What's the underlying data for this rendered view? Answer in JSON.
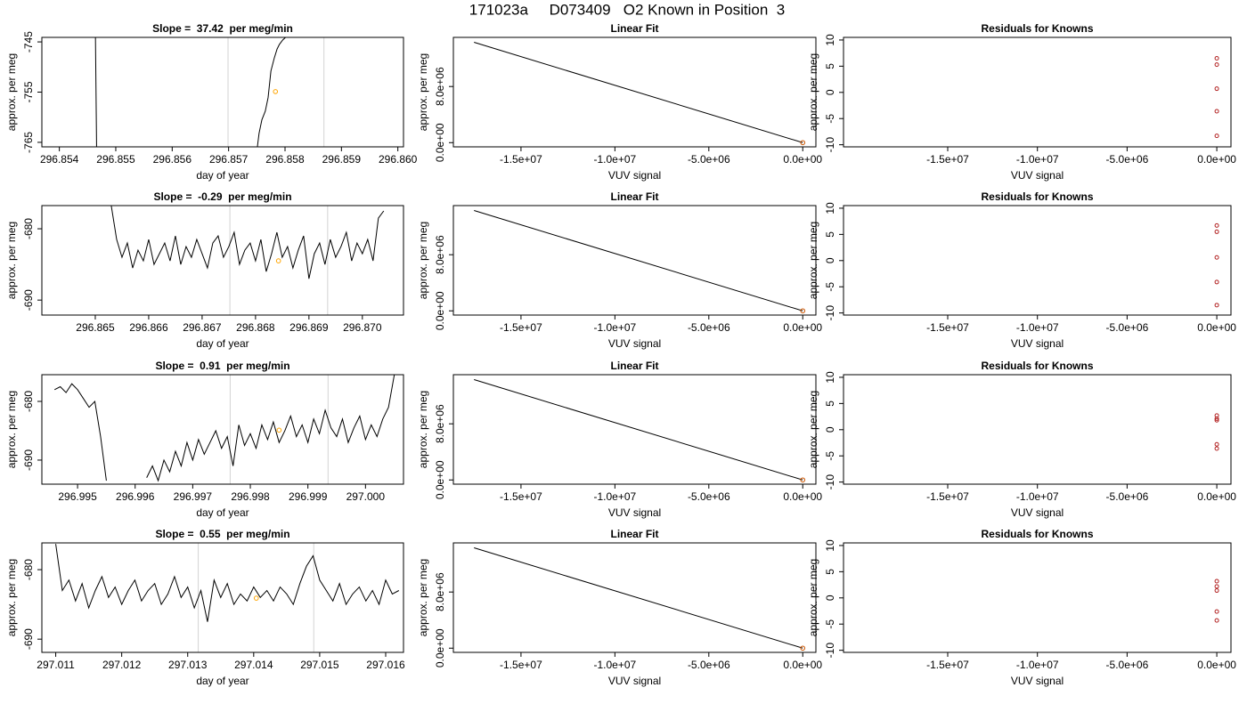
{
  "title": "171023a     D073409   O2 Known in Position  3",
  "chart_data": [
    {
      "type": "line",
      "title": "Slope =  37.42  per meg/min",
      "xlabel": "day of year",
      "ylabel": "approx. per meg",
      "x": [
        296.85464,
        296.85466,
        296.8546,
        296.85751,
        296.85754,
        296.85759,
        296.85765,
        296.8577,
        296.85775,
        296.85781,
        296.85786,
        296.8579,
        296.85796,
        296.85801
      ],
      "series": [
        {
          "color": "#000000",
          "values": [
            -744.1,
            -765.9,
            null,
            -765.9,
            -763.2,
            -760.5,
            -758.8,
            -756.1,
            -750.8,
            -748.2,
            -746.4,
            -745.5,
            -744.6,
            -744.1
          ]
        }
      ],
      "points": {
        "x": [
          296.85783
        ],
        "y": [
          -754.9
        ],
        "color": "#ffa500"
      },
      "vlines": [
        296.85699,
        296.85869
      ],
      "vline_color": "#d3d3d3",
      "xlim": [
        296.85369,
        296.8601
      ],
      "ylim": [
        -765.9,
        -744.1
      ],
      "xticks": [
        296.854,
        296.855,
        296.856,
        296.857,
        296.858,
        296.859,
        {
          "value": 296.86,
          "label": "296.860"
        }
      ],
      "yticks": [
        -745,
        -755,
        -765
      ]
    },
    {
      "type": "line",
      "title": "Linear Fit",
      "xlabel": "VUV signal",
      "ylabel": "approx. per meg",
      "x": [
        -17500000,
        0
      ],
      "series": [
        {
          "color": "#000000",
          "values": [
            14300000,
            0
          ]
        }
      ],
      "points": {
        "x": [
          0
        ],
        "y": [
          0
        ],
        "color": "#cc5500"
      },
      "xlim": [
        -18600000,
        700000
      ],
      "ylim": [
        -600000,
        15000000
      ],
      "xticks": [
        {
          "value": -15000000,
          "label": "-1.5e+07"
        },
        {
          "value": -10000000,
          "label": "-1.0e+07"
        },
        {
          "value": -5000000,
          "label": "-5.0e+06"
        },
        {
          "value": 0,
          "label": "0.0e+00"
        }
      ],
      "yticks": [
        {
          "value": 0,
          "label": "0.0e+00"
        },
        {
          "value": 8000000,
          "label": "8.0e+06"
        }
      ]
    },
    {
      "type": "scatter",
      "title": "Residuals for Knowns",
      "xlabel": "VUV signal",
      "ylabel": "approx. per meg",
      "x": [
        0,
        0,
        0,
        0,
        0
      ],
      "values": [
        6.5,
        5.3,
        0.7,
        -3.6,
        -8.3
      ],
      "color": "#b22222",
      "xlim": [
        -20810000,
        790000
      ],
      "ylim": [
        -10.4,
        10.5
      ],
      "xticks": [
        {
          "value": -15000000,
          "label": "-1.5e+07"
        },
        {
          "value": -10000000,
          "label": "-1.0e+07"
        },
        {
          "value": -5000000,
          "label": "-5.0e+06"
        },
        {
          "value": 0,
          "label": "0.0e+00"
        }
      ],
      "yticks": [
        -10,
        -5,
        0,
        5,
        10
      ]
    },
    {
      "type": "line",
      "title": "Slope =  -0.29  per meg/min",
      "xlabel": "day of year",
      "ylabel": "approx. per meg",
      "x": [
        296.8653,
        296.8654,
        296.8655,
        296.8656,
        296.8657,
        296.8658,
        296.8659,
        296.866,
        296.8661,
        296.8662,
        296.8663,
        296.8664,
        296.8665,
        296.8666,
        296.8667,
        296.8668,
        296.8669,
        296.867,
        296.8671,
        296.8672,
        296.8673,
        296.8674,
        296.8675,
        296.8676,
        296.8677,
        296.8678,
        296.8679,
        296.868,
        296.8681,
        296.8682,
        296.8683,
        296.8684,
        296.8685,
        296.8686,
        296.8687,
        296.8688,
        296.8689,
        296.869,
        296.8691,
        296.8692,
        296.8693,
        296.8694,
        296.8695,
        296.8696,
        296.8697,
        296.8698,
        296.8699,
        296.87,
        296.8701,
        296.8702,
        296.8703,
        296.8704
      ],
      "series": [
        {
          "color": "#000000",
          "values": [
            -676.8,
            -681.5,
            -684.0,
            -682.0,
            -685.5,
            -683.0,
            -684.5,
            -681.5,
            -685.0,
            -683.5,
            -682.0,
            -684.5,
            -681.0,
            -685.0,
            -682.5,
            -684.0,
            -681.5,
            -683.5,
            -685.5,
            -682.0,
            -681.0,
            -684.0,
            -682.5,
            -680.5,
            -685.0,
            -683.0,
            -682.0,
            -684.5,
            -681.5,
            -686.0,
            -683.5,
            -680.5,
            -684.0,
            -682.5,
            -685.5,
            -683.0,
            -681.0,
            -687.0,
            -683.5,
            -682.0,
            -685.0,
            -681.5,
            -684.0,
            -682.5,
            -680.5,
            -684.5,
            -682.0,
            -683.5,
            -681.5,
            -684.5,
            -678.5,
            -677.5
          ]
        }
      ],
      "points": {
        "x": [
          296.86843
        ],
        "y": [
          -684.5
        ],
        "color": "#ffa500"
      },
      "vlines": [
        296.86752,
        296.86935
      ],
      "vline_color": "#d3d3d3",
      "xlim": [
        296.864,
        296.87077
      ],
      "ylim": [
        -692.1,
        -676.75
      ],
      "xticks": [
        296.865,
        296.866,
        296.867,
        296.868,
        296.869,
        {
          "value": 296.87,
          "label": "296.870"
        }
      ],
      "yticks": [
        -680,
        -690
      ]
    },
    {
      "type": "line",
      "title": "Linear Fit",
      "xlabel": "VUV signal",
      "ylabel": "approx. per meg",
      "x": [
        -17500000,
        0
      ],
      "series": [
        {
          "color": "#000000",
          "values": [
            14300000,
            0
          ]
        }
      ],
      "points": {
        "x": [
          0
        ],
        "y": [
          0
        ],
        "color": "#cc5500"
      },
      "xlim": [
        -18600000,
        700000
      ],
      "ylim": [
        -600000,
        15000000
      ],
      "xticks": [
        {
          "value": -15000000,
          "label": "-1.5e+07"
        },
        {
          "value": -10000000,
          "label": "-1.0e+07"
        },
        {
          "value": -5000000,
          "label": "-5.0e+06"
        },
        {
          "value": 0,
          "label": "0.0e+00"
        }
      ],
      "yticks": [
        {
          "value": 0,
          "label": "0.0e+00"
        },
        {
          "value": 8000000,
          "label": "8.0e+06"
        }
      ]
    },
    {
      "type": "scatter",
      "title": "Residuals for Knowns",
      "xlabel": "VUV signal",
      "ylabel": "approx. per meg",
      "x": [
        0,
        0,
        0,
        0,
        0
      ],
      "values": [
        6.7,
        5.5,
        0.6,
        -4.1,
        -8.5
      ],
      "color": "#b22222",
      "xlim": [
        -20810000,
        790000
      ],
      "ylim": [
        -10.4,
        10.5
      ],
      "xticks": [
        {
          "value": -15000000,
          "label": "-1.5e+07"
        },
        {
          "value": -10000000,
          "label": "-1.0e+07"
        },
        {
          "value": -5000000,
          "label": "-5.0e+06"
        },
        {
          "value": 0,
          "label": "0.0e+00"
        }
      ],
      "yticks": [
        -10,
        -5,
        0,
        5,
        10
      ]
    },
    {
      "type": "line",
      "title": "Slope =  0.91  per meg/min",
      "xlabel": "day of year",
      "ylabel": "approx. per meg",
      "x": [
        296.9946,
        296.9947,
        296.9948,
        296.9949,
        296.995,
        296.9951,
        296.9952,
        296.9953,
        296.9954,
        296.9955,
        296.9956,
        296.9957,
        296.9958,
        296.9959,
        296.996,
        296.9961,
        296.9962,
        296.9963,
        296.9964,
        296.9965,
        296.9966,
        296.9967,
        296.9968,
        296.9969,
        296.997,
        296.9971,
        296.9972,
        296.9973,
        296.9974,
        296.9975,
        296.9976,
        296.9977,
        296.9978,
        296.9979,
        296.998,
        296.9981,
        296.9982,
        296.9983,
        296.9984,
        296.9985,
        296.9986,
        296.9987,
        296.9988,
        296.9989,
        296.999,
        296.9991,
        296.9992,
        296.9993,
        296.9994,
        296.9995,
        296.9996,
        296.9997,
        296.9998,
        296.9999,
        297.0,
        297.0001,
        297.0002,
        297.0003,
        297.0004,
        297.0005
      ],
      "series": [
        {
          "color": "#000000",
          "values": [
            -678.0,
            -677.5,
            -678.5,
            -677.0,
            -678.0,
            -679.5,
            -681.0,
            -680.0,
            -686.0,
            -693.5,
            null,
            null,
            null,
            null,
            null,
            null,
            -693.0,
            -691.0,
            -693.5,
            -690.0,
            -692.0,
            -688.5,
            -691.0,
            -687.0,
            -690.0,
            -686.5,
            -689.0,
            -687.0,
            -685.0,
            -688.0,
            -686.0,
            -691.0,
            -684.0,
            -687.5,
            -685.5,
            -688.0,
            -684.0,
            -686.5,
            -683.5,
            -687.0,
            -685.0,
            -682.5,
            -686.0,
            -684.0,
            -687.0,
            -683.0,
            -685.5,
            -681.5,
            -684.5,
            -686.0,
            -683.0,
            -687.0,
            -684.5,
            -682.5,
            -686.5,
            -684.0,
            -686.0,
            -683.0,
            -681.0,
            -675.5
          ]
        }
      ],
      "points": {
        "x": [
          296.9985
        ],
        "y": [
          -684.9
        ],
        "color": "#ffa500"
      },
      "vlines": [
        296.99765,
        296.99935
      ],
      "vline_color": "#d3d3d3",
      "xlim": [
        296.99438,
        297.00066
      ],
      "ylim": [
        -694.1,
        -675.45
      ],
      "xticks": [
        296.995,
        296.996,
        296.997,
        296.998,
        296.999,
        {
          "value": 297.0,
          "label": "297.000"
        }
      ],
      "yticks": [
        -680,
        -690
      ]
    },
    {
      "type": "line",
      "title": "Linear Fit",
      "xlabel": "VUV signal",
      "ylabel": "approx. per meg",
      "x": [
        -17500000,
        0
      ],
      "series": [
        {
          "color": "#000000",
          "values": [
            14300000,
            0
          ]
        }
      ],
      "points": {
        "x": [
          0
        ],
        "y": [
          0
        ],
        "color": "#cc5500"
      },
      "xlim": [
        -18600000,
        700000
      ],
      "ylim": [
        -600000,
        15000000
      ],
      "xticks": [
        {
          "value": -15000000,
          "label": "-1.5e+07"
        },
        {
          "value": -10000000,
          "label": "-1.0e+07"
        },
        {
          "value": -5000000,
          "label": "-5.0e+06"
        },
        {
          "value": 0,
          "label": "0.0e+00"
        }
      ],
      "yticks": [
        {
          "value": 0,
          "label": "0.0e+00"
        },
        {
          "value": 8000000,
          "label": "8.0e+06"
        }
      ]
    },
    {
      "type": "scatter",
      "title": "Residuals for Knowns",
      "xlabel": "VUV signal",
      "ylabel": "approx. per meg",
      "x": [
        0,
        0,
        0,
        0,
        0
      ],
      "values": [
        2.7,
        2.1,
        1.8,
        -2.8,
        -3.6
      ],
      "color": "#b22222",
      "xlim": [
        -20810000,
        790000
      ],
      "ylim": [
        -10.4,
        10.5
      ],
      "xticks": [
        {
          "value": -15000000,
          "label": "-1.5e+07"
        },
        {
          "value": -10000000,
          "label": "-1.0e+07"
        },
        {
          "value": -5000000,
          "label": "-5.0e+06"
        },
        {
          "value": 0,
          "label": "0.0e+00"
        }
      ],
      "yticks": [
        -10,
        -5,
        0,
        5,
        10
      ]
    },
    {
      "type": "line",
      "title": "Slope =  0.55  per meg/min",
      "xlabel": "day of year",
      "ylabel": "approx. per meg",
      "x": [
        297.011,
        297.0111,
        297.0112,
        297.0113,
        297.0114,
        297.0115,
        297.0116,
        297.0117,
        297.0118,
        297.0119,
        297.012,
        297.0121,
        297.0122,
        297.0123,
        297.0124,
        297.0125,
        297.0126,
        297.0127,
        297.0128,
        297.0129,
        297.013,
        297.0131,
        297.0132,
        297.0133,
        297.0134,
        297.0135,
        297.0136,
        297.0137,
        297.0138,
        297.0139,
        297.014,
        297.0141,
        297.0142,
        297.0143,
        297.0144,
        297.0145,
        297.0146,
        297.0147,
        297.0148,
        297.0149,
        297.015,
        297.0151,
        297.0152,
        297.0153,
        297.0154,
        297.0155,
        297.0156,
        297.0157,
        297.0158,
        297.0159,
        297.016,
        297.0161,
        297.0162
      ],
      "series": [
        {
          "color": "#000000",
          "values": [
            -676.3,
            -683.0,
            -681.5,
            -684.5,
            -682.0,
            -685.5,
            -683.0,
            -681.0,
            -684.0,
            -682.5,
            -685.0,
            -683.0,
            -681.5,
            -684.5,
            -683.0,
            -682.0,
            -685.0,
            -683.5,
            -681.0,
            -684.0,
            -682.5,
            -685.5,
            -683.0,
            -687.5,
            -681.5,
            -684.0,
            -682.0,
            -685.0,
            -683.5,
            -684.5,
            -682.5,
            -684.0,
            -683.0,
            -684.5,
            -682.5,
            -683.5,
            -685.0,
            -682.0,
            -679.5,
            -678.0,
            -681.5,
            -683.0,
            -684.5,
            -682.0,
            -685.0,
            -683.5,
            -682.5,
            -684.5,
            -683.0,
            -685.0,
            -681.5,
            -683.5,
            -683.0
          ]
        }
      ],
      "points": {
        "x": [
          297.01404
        ],
        "y": [
          -684.1
        ],
        "color": "#ffa500"
      },
      "vlines": [
        297.01316,
        297.01491
      ],
      "vline_color": "#d3d3d3",
      "xlim": [
        297.01079,
        297.01627
      ],
      "ylim": [
        -691.9,
        -676.15
      ],
      "xticks": [
        297.011,
        297.012,
        297.013,
        297.014,
        297.015,
        297.016
      ],
      "yticks": [
        -680,
        -690
      ]
    },
    {
      "type": "line",
      "title": "Linear Fit",
      "xlabel": "VUV signal",
      "ylabel": "approx. per meg",
      "x": [
        -17500000,
        0
      ],
      "series": [
        {
          "color": "#000000",
          "values": [
            14300000,
            0
          ]
        }
      ],
      "points": {
        "x": [
          0
        ],
        "y": [
          0
        ],
        "color": "#cc5500"
      },
      "xlim": [
        -18600000,
        700000
      ],
      "ylim": [
        -600000,
        15000000
      ],
      "xticks": [
        {
          "value": -15000000,
          "label": "-1.5e+07"
        },
        {
          "value": -10000000,
          "label": "-1.0e+07"
        },
        {
          "value": -5000000,
          "label": "-5.0e+06"
        },
        {
          "value": 0,
          "label": "0.0e+00"
        }
      ],
      "yticks": [
        {
          "value": 0,
          "label": "0.0e+00"
        },
        {
          "value": 8000000,
          "label": "8.0e+06"
        }
      ]
    },
    {
      "type": "scatter",
      "title": "Residuals for Knowns",
      "xlabel": "VUV signal",
      "ylabel": "approx. per meg",
      "x": [
        0,
        0,
        0,
        0,
        0
      ],
      "values": [
        3.2,
        2.2,
        1.4,
        -2.6,
        -4.3
      ],
      "color": "#b22222",
      "xlim": [
        -20810000,
        790000
      ],
      "ylim": [
        -10.4,
        10.5
      ],
      "xticks": [
        {
          "value": -15000000,
          "label": "-1.5e+07"
        },
        {
          "value": -10000000,
          "label": "-1.0e+07"
        },
        {
          "value": -5000000,
          "label": "-5.0e+06"
        },
        {
          "value": 0,
          "label": "0.0e+00"
        }
      ],
      "yticks": [
        -10,
        -5,
        0,
        5,
        10
      ]
    }
  ]
}
